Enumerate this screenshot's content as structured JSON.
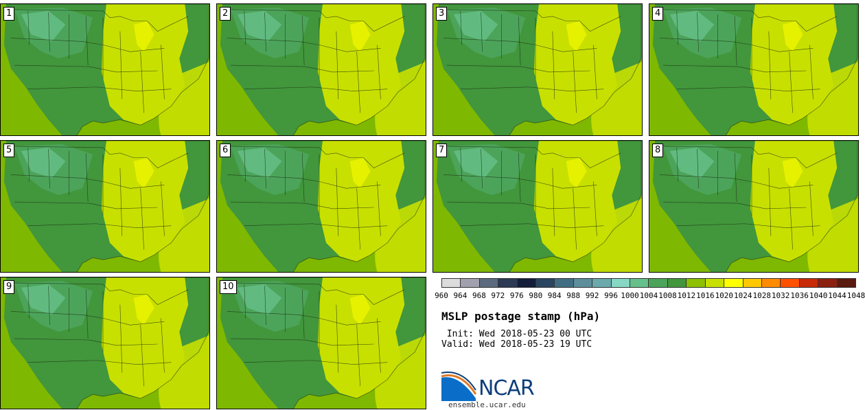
{
  "panels": [
    {
      "label": "1"
    },
    {
      "label": "2"
    },
    {
      "label": "3"
    },
    {
      "label": "4"
    },
    {
      "label": "5"
    },
    {
      "label": "6"
    },
    {
      "label": "7"
    },
    {
      "label": "8"
    },
    {
      "label": "9"
    },
    {
      "label": "10"
    }
  ],
  "colorbar": {
    "colors": [
      "#dcdcdc",
      "#a0a0ae",
      "#5c6a80",
      "#2c3a56",
      "#141e3a",
      "#2a4562",
      "#426e84",
      "#5e8e9c",
      "#6aaaac",
      "#86d8c4",
      "#66c08a",
      "#4ca45a",
      "#42963c",
      "#8cc000",
      "#c8e000",
      "#ffff00",
      "#ffc800",
      "#ff8c00",
      "#ff5000",
      "#c82a08",
      "#8c2010",
      "#5a1a10"
    ],
    "labels": [
      "960",
      "964",
      "968",
      "972",
      "976",
      "980",
      "984",
      "988",
      "992",
      "996",
      "1000",
      "1004",
      "1008",
      "1012",
      "1016",
      "1020",
      "1024",
      "1028",
      "1032",
      "1036",
      "1040",
      "1044",
      "1048"
    ]
  },
  "map_colors": {
    "ocean": "#7fb800",
    "land_dark": "#42963c",
    "land_mid": "#4ca45a",
    "land_light": "#66c08a",
    "east_high": "#c8e000",
    "highest": "#ffff00",
    "border": "#1a2a10"
  },
  "title": "MSLP postage stamp (hPa)",
  "init_text": " Init: Wed 2018-05-23 00 UTC",
  "valid_text": "Valid: Wed 2018-05-23 19 UTC",
  "logo": {
    "text": "NCAR"
  },
  "site": "ensemble.ucar.edu"
}
